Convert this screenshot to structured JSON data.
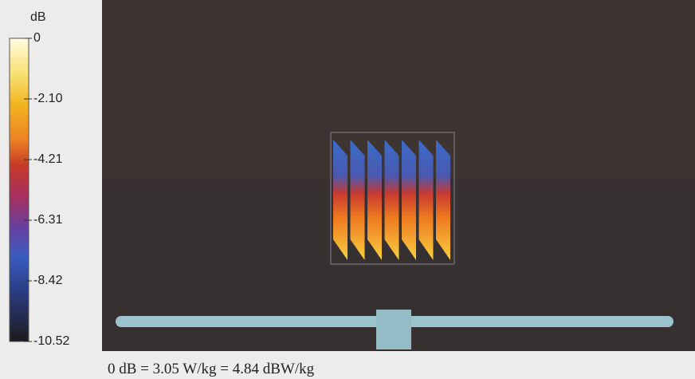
{
  "colorbar": {
    "unit": "dB",
    "ticks": [
      "0",
      "-2.10",
      "-4.21",
      "-6.31",
      "-8.42",
      "-10.52"
    ]
  },
  "caption": "0 dB = 3.05 W/kg = 4.84 dBW/kg"
}
